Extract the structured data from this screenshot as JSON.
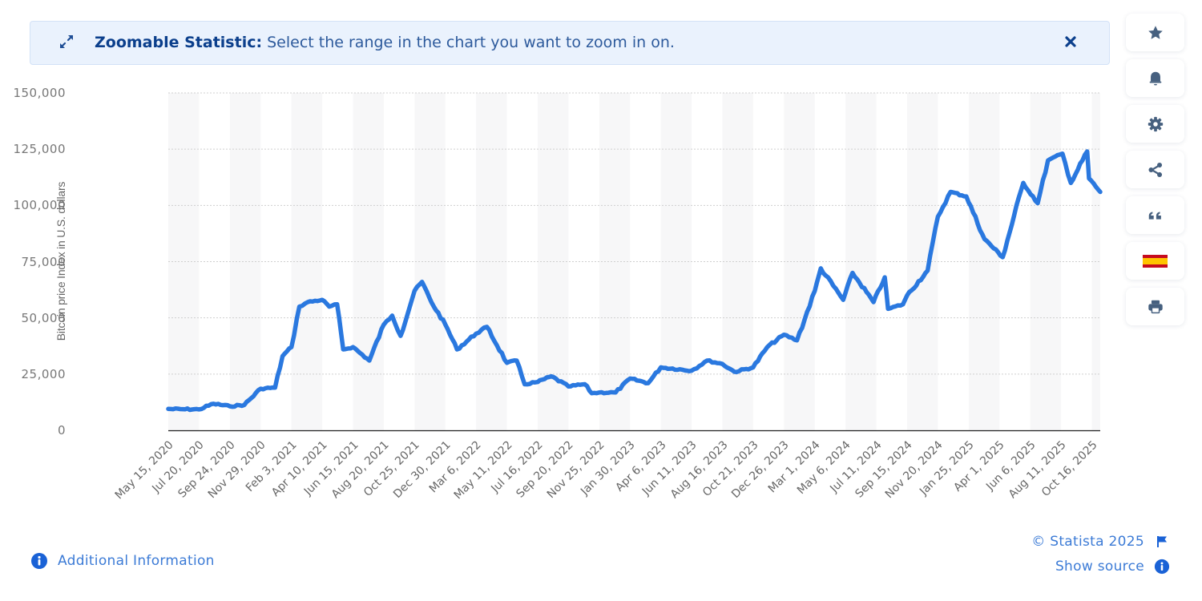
{
  "banner": {
    "title": "Zoomable Statistic:",
    "message": "Select the range in the chart you want to zoom in on.",
    "icon": "expand-arrows-icon",
    "close_icon": "close-icon"
  },
  "toolbar": {
    "items": [
      {
        "name": "favorite",
        "icon": "star-icon"
      },
      {
        "name": "notifications",
        "icon": "bell-icon"
      },
      {
        "name": "settings",
        "icon": "gear-icon"
      },
      {
        "name": "share",
        "icon": "share-icon"
      },
      {
        "name": "cite",
        "icon": "quote-icon"
      },
      {
        "name": "language-spanish",
        "icon": "spain-flag-icon"
      },
      {
        "name": "print",
        "icon": "printer-icon"
      }
    ]
  },
  "footer": {
    "additional_info": "Additional Information",
    "copyright": "© Statista 2025",
    "show_source": "Show source"
  },
  "colors": {
    "line": "#2a78df",
    "banner_bg": "#eaf2fd",
    "banner_title": "#0b3f8c",
    "link": "#3c7bd6",
    "icon": "#46607f",
    "info_badge": "#1a62d6"
  },
  "chart_data": {
    "type": "line",
    "title": "",
    "xlabel": "",
    "ylabel": "Bitcoin price Index in U.S. dollars",
    "ylim": [
      0,
      150000
    ],
    "yticks": [
      0,
      25000,
      50000,
      75000,
      100000,
      125000,
      150000
    ],
    "ytick_labels": [
      "0",
      "25,000",
      "50,000",
      "75,000",
      "100,000",
      "125,000",
      "150,000"
    ],
    "grid": true,
    "legend": "none",
    "xtick_labels": [
      "May 15, 2020",
      "Jul 20, 2020",
      "Sep 24, 2020",
      "Nov 29, 2020",
      "Feb 3, 2021",
      "Apr 10, 2021",
      "Jun 15, 2021",
      "Aug 20, 2021",
      "Oct 25, 2021",
      "Dec 30, 2021",
      "Mar 6, 2022",
      "May 11, 2022",
      "Jul 16, 2022",
      "Sep 20, 2022",
      "Nov 25, 2022",
      "Jan 30, 2023",
      "Apr 6, 2023",
      "Jun 11, 2023",
      "Aug 16, 2023",
      "Oct 21, 2023",
      "Dec 26, 2023",
      "Mar 1, 2024",
      "May 6, 2024",
      "Jul 11, 2024",
      "Sep 15, 2024",
      "Nov 20, 2024",
      "Jan 25, 2025",
      "Apr 1, 2025",
      "Jun 6, 2025",
      "Aug 11, 2025",
      "Oct 16, 2025"
    ],
    "series": [
      {
        "name": "Bitcoin price",
        "x": [
          "May 15, 2020",
          "Jun 15, 2020",
          "Jul 20, 2020",
          "Aug 20, 2020",
          "Sep 24, 2020",
          "Oct 25, 2020",
          "Nov 29, 2020",
          "Dec 30, 2020",
          "Jan 15, 2021",
          "Feb 3, 2021",
          "Feb 20, 2021",
          "Mar 10, 2021",
          "Apr 10, 2021",
          "Apr 25, 2021",
          "May 12, 2021",
          "May 25, 2021",
          "Jun 15, 2021",
          "Jul 20, 2021",
          "Aug 20, 2021",
          "Sep 7, 2021",
          "Sep 25, 2021",
          "Oct 25, 2021",
          "Nov 10, 2021",
          "Nov 30, 2021",
          "Dec 30, 2021",
          "Jan 24, 2022",
          "Mar 6, 2022",
          "Mar 29, 2022",
          "May 11, 2022",
          "Jun 1, 2022",
          "Jun 18, 2022",
          "Jul 16, 2022",
          "Aug 14, 2022",
          "Sep 20, 2022",
          "Oct 25, 2022",
          "Nov 9, 2022",
          "Nov 25, 2022",
          "Dec 30, 2022",
          "Jan 30, 2023",
          "Mar 10, 2023",
          "Apr 6, 2023",
          "Jun 11, 2023",
          "Jul 14, 2023",
          "Aug 16, 2023",
          "Sep 11, 2023",
          "Oct 21, 2023",
          "Nov 20, 2023",
          "Dec 26, 2023",
          "Jan 23, 2024",
          "Mar 1, 2024",
          "Mar 14, 2024",
          "May 1, 2024",
          "May 21, 2024",
          "Jul 5, 2024",
          "Jul 29, 2024",
          "Aug 5, 2024",
          "Sep 6, 2024",
          "Sep 15, 2024",
          "Oct 29, 2024",
          "Nov 20, 2024",
          "Dec 17, 2024",
          "Jan 20, 2025",
          "Feb 28, 2025",
          "Apr 8, 2025",
          "May 22, 2025",
          "Jun 22, 2025",
          "Jul 14, 2025",
          "Aug 14, 2025",
          "Sep 1, 2025",
          "Oct 6, 2025",
          "Oct 10, 2025",
          "Nov 3, 2025"
        ],
        "values": [
          9500,
          9400,
          9300,
          11800,
          10700,
          11300,
          18500,
          19000,
          33000,
          37000,
          55000,
          57000,
          58000,
          55000,
          56000,
          36000,
          37000,
          31000,
          47000,
          51000,
          42000,
          62000,
          66000,
          57000,
          47000,
          36000,
          43000,
          46000,
          30000,
          31000,
          20500,
          21500,
          24000,
          19500,
          20500,
          16500,
          16800,
          16800,
          23000,
          21000,
          28000,
          26500,
          31000,
          29500,
          26000,
          28000,
          37000,
          42500,
          40000,
          62000,
          72000,
          58000,
          70000,
          57000,
          68000,
          54000,
          56000,
          60000,
          71000,
          95000,
          106000,
          104000,
          85000,
          77000,
          110000,
          101000,
          120000,
          123000,
          110000,
          124000,
          112000,
          106000
        ]
      }
    ]
  }
}
